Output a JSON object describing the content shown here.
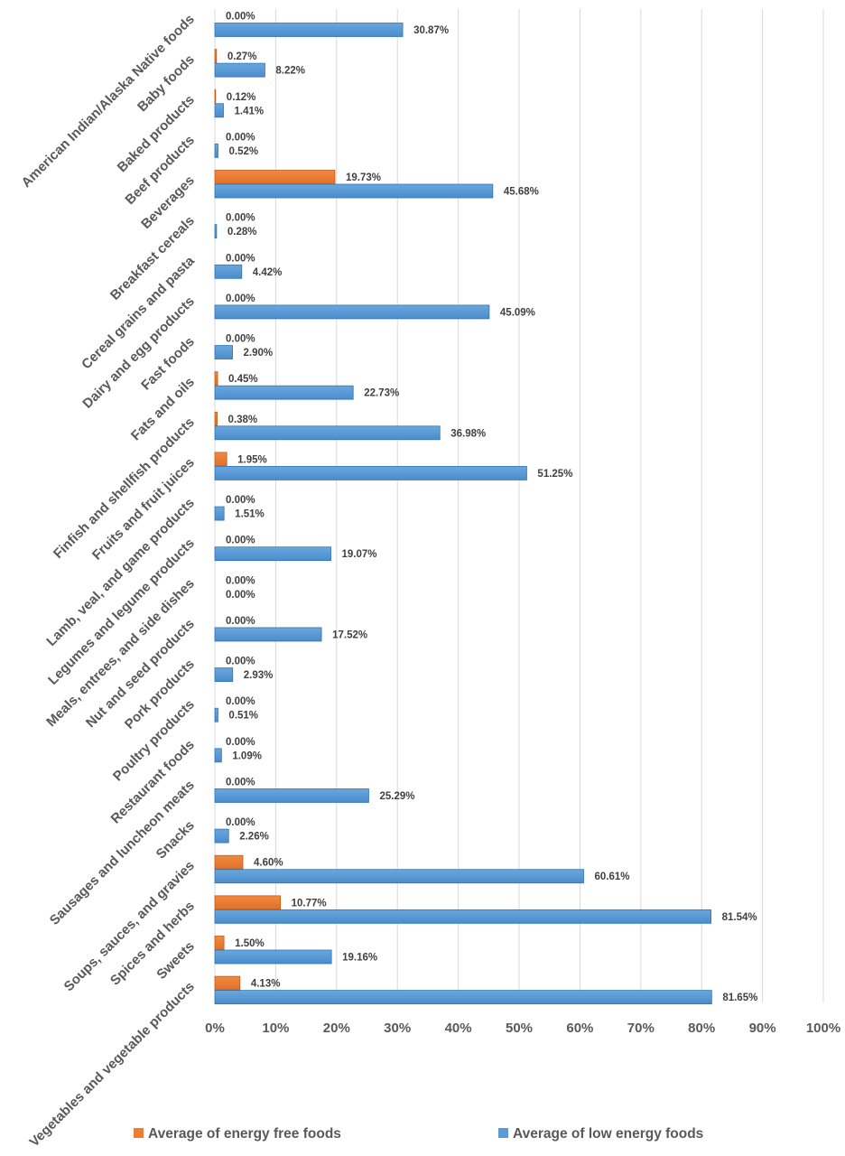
{
  "chart_data": {
    "type": "bar",
    "orientation": "horizontal",
    "categories": [
      "American Indian/Alaska Native foods",
      "Baby foods",
      "Baked products",
      "Beef products",
      "Beverages",
      "Breakfast cereals",
      "Cereal grains and pasta",
      "Dairy and egg products",
      "Fast foods",
      "Fats and oils",
      "Finfish and shellfish products",
      "Fruits and fruit juices",
      "Lamb, veal, and game products",
      "Legumes and legume products",
      "Meals, entrees, and side dishes",
      "Nut and seed products",
      "Pork products",
      "Poultry products",
      "Restaurant foods",
      "Sausages and luncheon meats",
      "Snacks",
      "Soups, sauces, and gravies",
      "Spices and herbs",
      "Sweets",
      "Vegetables and vegetable products"
    ],
    "series": [
      {
        "name": "Average of energy free foods",
        "color": "#ed7d31",
        "values": [
          0.0,
          0.27,
          0.12,
          0.0,
          19.73,
          0.0,
          0.0,
          0.0,
          0.0,
          0.45,
          0.38,
          1.95,
          0.0,
          0.0,
          0.0,
          0.0,
          0.0,
          0.0,
          0.0,
          0.0,
          0.0,
          4.6,
          10.77,
          1.5,
          4.13
        ],
        "labels": [
          "0.00%",
          "0.27%",
          "0.12%",
          "0.00%",
          "19.73%",
          "0.00%",
          "0.00%",
          "0.00%",
          "0.00%",
          "0.45%",
          "0.38%",
          "1.95%",
          "0.00%",
          "0.00%",
          "0.00%",
          "0.00%",
          "0.00%",
          "0.00%",
          "0.00%",
          "0.00%",
          "0.00%",
          "4.60%",
          "10.77%",
          "1.50%",
          "4.13%"
        ]
      },
      {
        "name": "Average of low energy foods",
        "color": "#5b9bd5",
        "values": [
          30.87,
          8.22,
          1.41,
          0.52,
          45.68,
          0.28,
          4.42,
          45.09,
          2.9,
          22.73,
          36.98,
          51.25,
          1.51,
          19.07,
          0.0,
          17.52,
          2.93,
          0.51,
          1.09,
          25.29,
          2.26,
          60.61,
          81.54,
          19.16,
          81.65
        ],
        "labels": [
          "30.87%",
          "8.22%",
          "1.41%",
          "0.52%",
          "45.68%",
          "0.28%",
          "4.42%",
          "45.09%",
          "2.90%",
          "22.73%",
          "36.98%",
          "51.25%",
          "1.51%",
          "19.07%",
          "0.00%",
          "17.52%",
          "2.93%",
          "0.51%",
          "1.09%",
          "25.29%",
          "2.26%",
          "60.61%",
          "81.54%",
          "19.16%",
          "81.65%"
        ]
      }
    ],
    "xlim": [
      0,
      100
    ],
    "x_ticks": [
      "0%",
      "10%",
      "20%",
      "30%",
      "40%",
      "50%",
      "60%",
      "70%",
      "80%",
      "90%",
      "100%"
    ],
    "grid": "vertical",
    "legend_position": "bottom",
    "title": "",
    "xlabel": "",
    "ylabel": ""
  }
}
